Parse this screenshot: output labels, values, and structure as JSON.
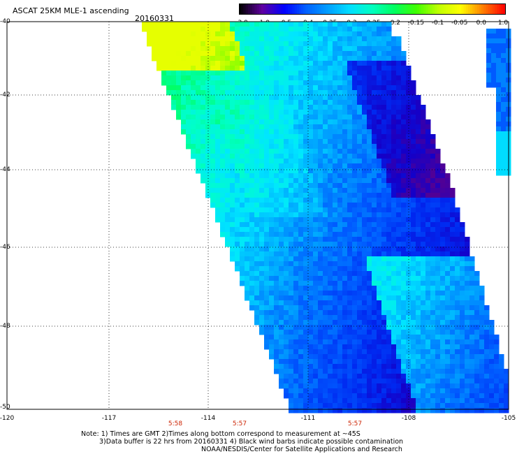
{
  "header": {
    "title": "ASCAT 25KM MLE-1 ascending",
    "date": "20160331"
  },
  "colorbar": {
    "labels": [
      "-3.0",
      "-1.0",
      "-0.5",
      "-0.4",
      "-0.35",
      "-0.3",
      "-0.25",
      "-0.2",
      "-0.15",
      "-0.1",
      "-0.05",
      "0.0",
      "1.0"
    ],
    "colors": [
      "#000000",
      "#6000a0",
      "#0000ff",
      "#0060ff",
      "#00a0ff",
      "#00e0ff",
      "#00ffc0",
      "#00ff60",
      "#40ff00",
      "#c0ff00",
      "#ffff00",
      "#ff8000",
      "#ff0000"
    ]
  },
  "map": {
    "lat_labels": [
      "-40",
      "-42",
      "-44",
      "-46",
      "-48",
      "-50"
    ],
    "lon_labels": [
      "-120",
      "-117",
      "-114",
      "-111",
      "-108",
      "-105"
    ],
    "lat_range": [
      -50,
      -40
    ],
    "lon_range": [
      -120,
      -105
    ],
    "times": [
      {
        "label": "5:58",
        "lon": -115
      },
      {
        "label": "5:57",
        "lon": -113
      },
      {
        "label": "5:57",
        "lon": -109.5
      }
    ]
  },
  "notes": {
    "line1": "Note: 1) Times are GMT 2)Times along bottom correspond to measurement at ~45S",
    "line2": "3)Data buffer is 22 hrs from 20160331 4) Black wind barbs indicate possible contamination",
    "line3": "NOAA/NESDIS/Center for Satellite Applications and Research"
  }
}
